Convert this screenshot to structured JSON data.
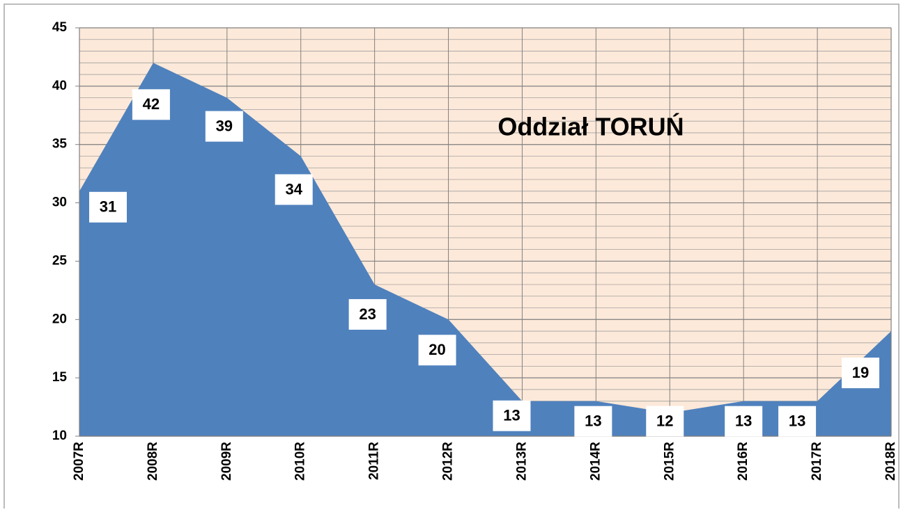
{
  "chart_data": {
    "type": "area",
    "title": "Oddział TORUŃ",
    "categories": [
      "2007R",
      "2008R",
      "2009R",
      "2010R",
      "2011R",
      "2012R",
      "2013R",
      "2014R",
      "2015R",
      "2016R",
      "2017R",
      "2018R"
    ],
    "values": [
      31,
      42,
      39,
      34,
      23,
      20,
      13,
      13,
      12,
      13,
      13,
      19
    ],
    "color": "#4f81bd",
    "background": "#fde9d9",
    "ylim": [
      10,
      45
    ],
    "yticks": [
      10,
      15,
      20,
      25,
      30,
      35,
      40,
      45
    ],
    "grid": true,
    "minor_grid_step": 1
  }
}
